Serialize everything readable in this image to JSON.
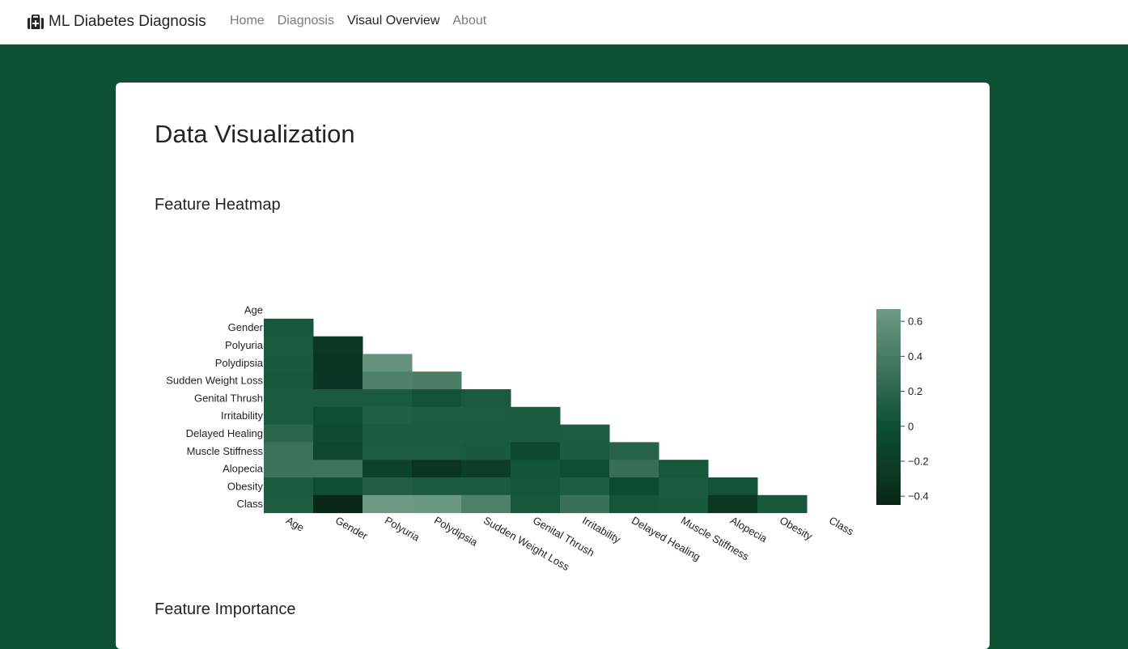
{
  "navbar": {
    "brand": "ML Diabetes Diagnosis",
    "brand_icon": "medical-kit-icon",
    "links": [
      "Home",
      "Diagnosis",
      "Visaul Overview",
      "About"
    ],
    "active_index": 2
  },
  "page": {
    "title": "Data Visualization",
    "section_heatmap": "Feature Heatmap",
    "section_importance": "Feature Importance"
  },
  "colors": {
    "background": "#0e5034",
    "colorscale_low": "#0a2718",
    "colorscale_mid": "#0e5034",
    "colorscale_high": "#6e9a85"
  },
  "chart_data": {
    "type": "heatmap",
    "features": [
      "Age",
      "Gender",
      "Polyuria",
      "Polydipsia",
      "Sudden Weight Loss",
      "Genital Thrush",
      "Irritability",
      "Delayed Healing",
      "Muscle Stiffness",
      "Alopecia",
      "Obesity",
      "Class"
    ],
    "values": [
      [
        null,
        null,
        null,
        null,
        null,
        null,
        null,
        null,
        null,
        null,
        null,
        null
      ],
      [
        0.06,
        null,
        null,
        null,
        null,
        null,
        null,
        null,
        null,
        null,
        null,
        null
      ],
      [
        0.09,
        -0.27,
        null,
        null,
        null,
        null,
        null,
        null,
        null,
        null,
        null,
        null
      ],
      [
        0.08,
        -0.31,
        0.6,
        null,
        null,
        null,
        null,
        null,
        null,
        null,
        null,
        null
      ],
      [
        0.06,
        -0.28,
        0.45,
        0.41,
        null,
        null,
        null,
        null,
        null,
        null,
        null,
        null
      ],
      [
        0.09,
        0.09,
        0.09,
        0.03,
        0.09,
        null,
        null,
        null,
        null,
        null,
        null,
        null
      ],
      [
        0.09,
        -0.01,
        0.14,
        0.11,
        0.11,
        0.1,
        null,
        null,
        null,
        null,
        null,
        null
      ],
      [
        0.2,
        -0.05,
        0.1,
        0.1,
        0.1,
        0.1,
        0.11,
        null,
        null,
        null,
        null,
        null
      ],
      [
        0.31,
        -0.1,
        0.11,
        0.11,
        0.08,
        -0.09,
        0.1,
        0.17,
        null,
        null,
        null,
        null
      ],
      [
        0.32,
        0.33,
        -0.14,
        -0.31,
        -0.2,
        0.04,
        -0.01,
        0.28,
        0.06,
        null,
        null,
        null
      ],
      [
        0.1,
        -0.02,
        0.13,
        0.1,
        0.1,
        0.05,
        0.12,
        -0.04,
        0.09,
        0.03,
        null,
        null
      ],
      [
        0.11,
        -0.45,
        0.67,
        0.65,
        0.44,
        0.07,
        0.3,
        0.05,
        0.08,
        -0.27,
        0.07,
        null
      ]
    ],
    "colorbar": {
      "ticks": [
        -0.4,
        -0.2,
        0,
        0.2,
        0.4,
        0.6
      ],
      "tick_labels": [
        "−0.4",
        "−0.2",
        "0",
        "0.2",
        "0.4",
        "0.6"
      ],
      "range": [
        -0.45,
        0.67
      ]
    },
    "title": "",
    "xlabel": "",
    "ylabel": ""
  }
}
